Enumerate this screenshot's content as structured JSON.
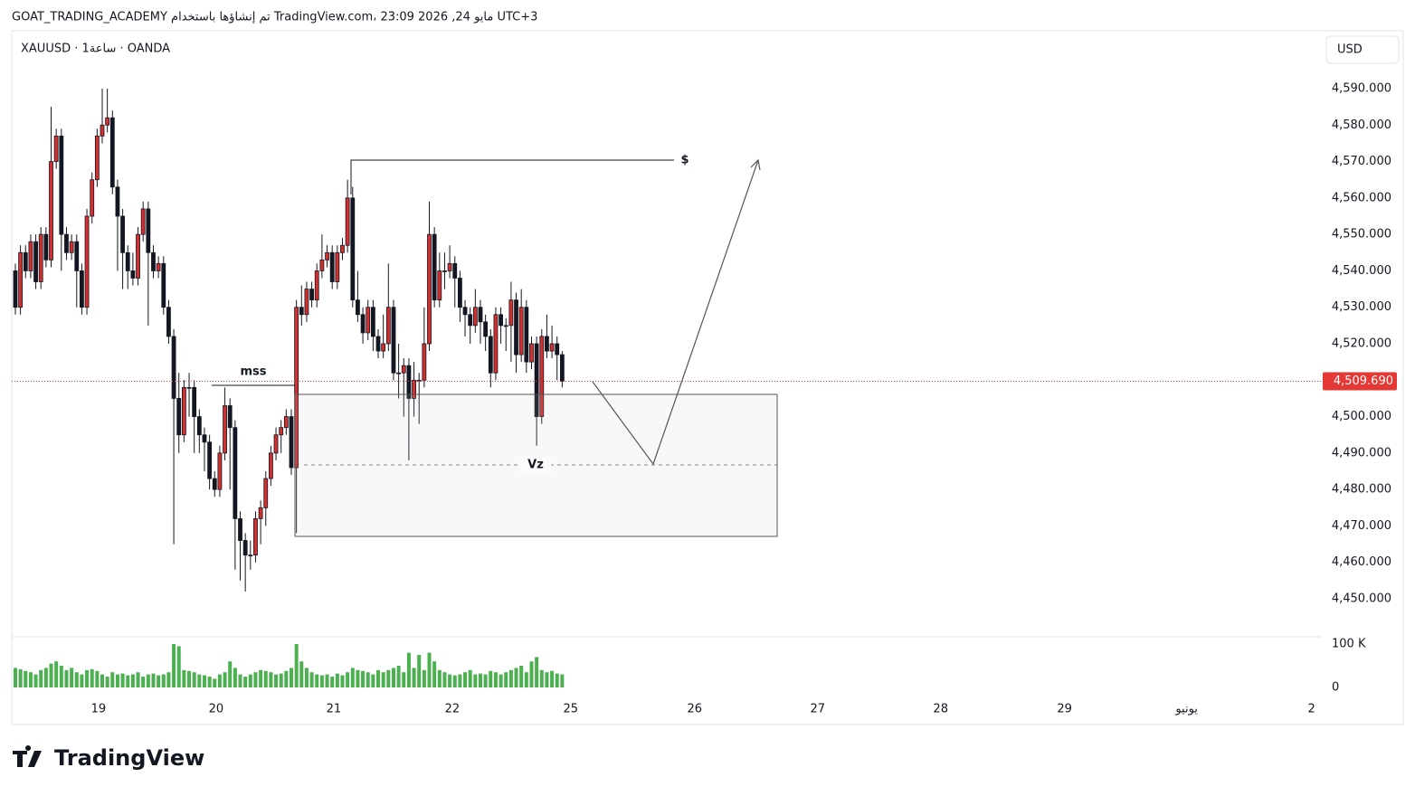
{
  "header": "GOAT_TRADING_ACADEMY تم إنشاؤها باستخدام TradingView.com، 23:09 2026 ,24 مايو UTC+3",
  "logo": "TradingView",
  "chart_data": {
    "type": "candlestick",
    "title": "XAUUSD · 1ساعة · OANDA",
    "currency": "USD",
    "up_color": "#d32f2f",
    "down_color": "#131722",
    "volume_color": "#4caf50",
    "xlim": [
      -0.35,
      256
    ],
    "xticks": [
      {
        "value": 16.28,
        "label": "19"
      },
      {
        "value": 39.29,
        "label": "20"
      },
      {
        "value": 62.3,
        "label": "21"
      },
      {
        "value": 85.49,
        "label": "22"
      },
      {
        "value": 108.67,
        "label": "25"
      },
      {
        "value": 132.92,
        "label": "26"
      },
      {
        "value": 156.99,
        "label": "27"
      },
      {
        "value": 181.06,
        "label": "28"
      },
      {
        "value": 205.31,
        "label": "29"
      },
      {
        "value": 229.2,
        "label": "يونيو"
      },
      {
        "value": 253.63,
        "label": "2"
      }
    ],
    "ylim": [
      4440,
      4600
    ],
    "yticks": [
      {
        "value": 4450,
        "label": "4,450.000"
      },
      {
        "value": 4460,
        "label": "4,460.000"
      },
      {
        "value": 4470,
        "label": "4,470.000"
      },
      {
        "value": 4480,
        "label": "4,480.000"
      },
      {
        "value": 4490,
        "label": "4,490.000"
      },
      {
        "value": 4500,
        "label": "4,500.000"
      },
      {
        "value": 4510,
        "label": "4,510.000"
      },
      {
        "value": 4520,
        "label": "4,520.000"
      },
      {
        "value": 4530,
        "label": "4,530.000"
      },
      {
        "value": 4540,
        "label": "4,540.000"
      },
      {
        "value": 4550,
        "label": "4,550.000"
      },
      {
        "value": 4560,
        "label": "4,560.000"
      },
      {
        "value": 4570,
        "label": "4,570.000"
      },
      {
        "value": 4580,
        "label": "4,580.000"
      },
      {
        "value": 4590,
        "label": "4,590.000"
      }
    ],
    "last_price": {
      "value": 4509.69,
      "label": "4,509.690"
    },
    "volume_ylim": [
      0,
      100000
    ],
    "volume_yticks": [
      {
        "value": 100000,
        "label": "100 K"
      },
      0
    ],
    "annotations": [
      "mss",
      "$",
      "Vz"
    ],
    "candles": [
      [
        4540,
        4542,
        4528,
        4530
      ],
      [
        4530,
        4547,
        4528,
        4545
      ],
      [
        4545,
        4547,
        4538,
        4540
      ],
      [
        4540,
        4550,
        4538,
        4548
      ],
      [
        4548,
        4550,
        4535,
        4537
      ],
      [
        4537,
        4552,
        4535,
        4550
      ],
      [
        4550,
        4552,
        4541,
        4543
      ],
      [
        4543,
        4585,
        4541,
        4570
      ],
      [
        4570,
        4579,
        4568,
        4577
      ],
      [
        4577,
        4579,
        4540,
        4550
      ],
      [
        4550,
        4552,
        4543,
        4545
      ],
      [
        4545,
        4550,
        4543,
        4548
      ],
      [
        4548,
        4550,
        4530,
        4540
      ],
      [
        4540,
        4542,
        4528,
        4530
      ],
      [
        4530,
        4557,
        4528,
        4555
      ],
      [
        4555,
        4567,
        4553,
        4565
      ],
      [
        4565,
        4579,
        4563,
        4577
      ],
      [
        4577,
        4590,
        4575,
        4580
      ],
      [
        4580,
        4590,
        4578,
        4582
      ],
      [
        4582,
        4584,
        4561,
        4563
      ],
      [
        4563,
        4565,
        4540,
        4555
      ],
      [
        4555,
        4557,
        4535,
        4545
      ],
      [
        4545,
        4547,
        4535,
        4540
      ],
      [
        4540,
        4545,
        4536,
        4538
      ],
      [
        4538,
        4552,
        4536,
        4550
      ],
      [
        4550,
        4559,
        4548,
        4557
      ],
      [
        4557,
        4559,
        4525,
        4545
      ],
      [
        4545,
        4547,
        4538,
        4540
      ],
      [
        4540,
        4544,
        4538,
        4542
      ],
      [
        4542,
        4544,
        4528,
        4530
      ],
      [
        4530,
        4532,
        4520,
        4522
      ],
      [
        4522,
        4524,
        4465,
        4505
      ],
      [
        4505,
        4512,
        4490,
        4495
      ],
      [
        4495,
        4510,
        4493,
        4508
      ],
      [
        4508,
        4512,
        4500,
        4508
      ],
      [
        4508,
        4510,
        4490,
        4500
      ],
      [
        4500,
        4502,
        4490,
        4495
      ],
      [
        4495,
        4497,
        4485,
        4493
      ],
      [
        4493,
        4495,
        4480,
        4483
      ],
      [
        4483,
        4485,
        4478,
        4480
      ],
      [
        4480,
        4492,
        4478,
        4490
      ],
      [
        4490,
        4508,
        4488,
        4503
      ],
      [
        4503,
        4505,
        4480,
        4497
      ],
      [
        4497,
        4499,
        4458,
        4472
      ],
      [
        4472,
        4474,
        4455,
        4466
      ],
      [
        4466,
        4468,
        4452,
        4462
      ],
      [
        4462,
        4466,
        4458,
        4462
      ],
      [
        4462,
        4474,
        4460,
        4472
      ],
      [
        4472,
        4477,
        4465,
        4475
      ],
      [
        4475,
        4485,
        4470,
        4483
      ],
      [
        4483,
        4492,
        4481,
        4490
      ],
      [
        4490,
        4497,
        4488,
        4495
      ],
      [
        4495,
        4499,
        4490,
        4497
      ],
      [
        4497,
        4502,
        4495,
        4500
      ],
      [
        4500,
        4502,
        4484,
        4486
      ],
      [
        4486,
        4532,
        4468,
        4530
      ],
      [
        4530,
        4536,
        4525,
        4528
      ],
      [
        4528,
        4537,
        4526,
        4535
      ],
      [
        4535,
        4537,
        4530,
        4532
      ],
      [
        4532,
        4542,
        4530,
        4540
      ],
      [
        4540,
        4550,
        4538,
        4543
      ],
      [
        4543,
        4547,
        4541,
        4545
      ],
      [
        4545,
        4547,
        4535,
        4537
      ],
      [
        4537,
        4547,
        4535,
        4545
      ],
      [
        4545,
        4549,
        4543,
        4547
      ],
      [
        4547,
        4565,
        4545,
        4560
      ],
      [
        4560,
        4563,
        4530,
        4532
      ],
      [
        4532,
        4540,
        4526,
        4528
      ],
      [
        4528,
        4530,
        4520,
        4523
      ],
      [
        4523,
        4532,
        4521,
        4530
      ],
      [
        4530,
        4532,
        4518,
        4522
      ],
      [
        4522,
        4524,
        4516,
        4518
      ],
      [
        4518,
        4528,
        4516,
        4520
      ],
      [
        4520,
        4542,
        4518,
        4530
      ],
      [
        4530,
        4532,
        4510,
        4512
      ],
      [
        4512,
        4520,
        4505,
        4512
      ],
      [
        4512,
        4516,
        4500,
        4514
      ],
      [
        4514,
        4516,
        4488,
        4505
      ],
      [
        4505,
        4515,
        4500,
        4510
      ],
      [
        4510,
        4512,
        4498,
        4510
      ],
      [
        4510,
        4530,
        4508,
        4520
      ],
      [
        4520,
        4559,
        4518,
        4550
      ],
      [
        4550,
        4552,
        4530,
        4532
      ],
      [
        4532,
        4545,
        4530,
        4540
      ],
      [
        4540,
        4545,
        4535,
        4540
      ],
      [
        4540,
        4547,
        4538,
        4542
      ],
      [
        4542,
        4544,
        4530,
        4538
      ],
      [
        4538,
        4540,
        4526,
        4530
      ],
      [
        4530,
        4532,
        4522,
        4528
      ],
      [
        4528,
        4530,
        4520,
        4525
      ],
      [
        4525,
        4535,
        4523,
        4530
      ],
      [
        4530,
        4532,
        4520,
        4526
      ],
      [
        4526,
        4528,
        4518,
        4522
      ],
      [
        4522,
        4524,
        4508,
        4512
      ],
      [
        4512,
        4530,
        4510,
        4528
      ],
      [
        4528,
        4530,
        4520,
        4525
      ],
      [
        4525,
        4527,
        4518,
        4525
      ],
      [
        4525,
        4537,
        4515,
        4532
      ],
      [
        4532,
        4534,
        4512,
        4517
      ],
      [
        4517,
        4535,
        4515,
        4530
      ],
      [
        4530,
        4532,
        4512,
        4515
      ],
      [
        4515,
        4522,
        4513,
        4520
      ],
      [
        4520,
        4522,
        4492,
        4500
      ],
      [
        4500,
        4524,
        4498,
        4522
      ],
      [
        4522,
        4528,
        4516,
        4518
      ],
      [
        4518,
        4525,
        4516,
        4520
      ],
      [
        4520,
        4522,
        4510,
        4517
      ],
      [
        4517,
        4518,
        4508,
        4509.69
      ]
    ],
    "volumes": [
      45000,
      42000,
      38000,
      35000,
      30000,
      40000,
      45000,
      55000,
      60000,
      50000,
      40000,
      45000,
      35000,
      30000,
      40000,
      42000,
      38000,
      30000,
      25000,
      35000,
      30000,
      32000,
      28000,
      30000,
      35000,
      25000,
      30000,
      32000,
      28000,
      30000,
      35000,
      100000,
      95000,
      40000,
      38000,
      35000,
      30000,
      28000,
      25000,
      20000,
      30000,
      35000,
      60000,
      45000,
      30000,
      25000,
      30000,
      35000,
      40000,
      38000,
      35000,
      30000,
      32000,
      38000,
      45000,
      100000,
      60000,
      45000,
      35000,
      30000,
      28000,
      30000,
      25000,
      32000,
      28000,
      35000,
      45000,
      40000,
      38000,
      35000,
      30000,
      40000,
      35000,
      40000,
      45000,
      50000,
      35000,
      80000,
      45000,
      75000,
      40000,
      80000,
      60000,
      40000,
      35000,
      30000,
      28000,
      30000,
      35000,
      40000,
      30000,
      32000,
      30000,
      38000,
      35000,
      30000,
      35000,
      40000,
      45000,
      50000,
      35000,
      60000,
      70000,
      40000,
      35000,
      38000,
      32000,
      30000
    ]
  }
}
